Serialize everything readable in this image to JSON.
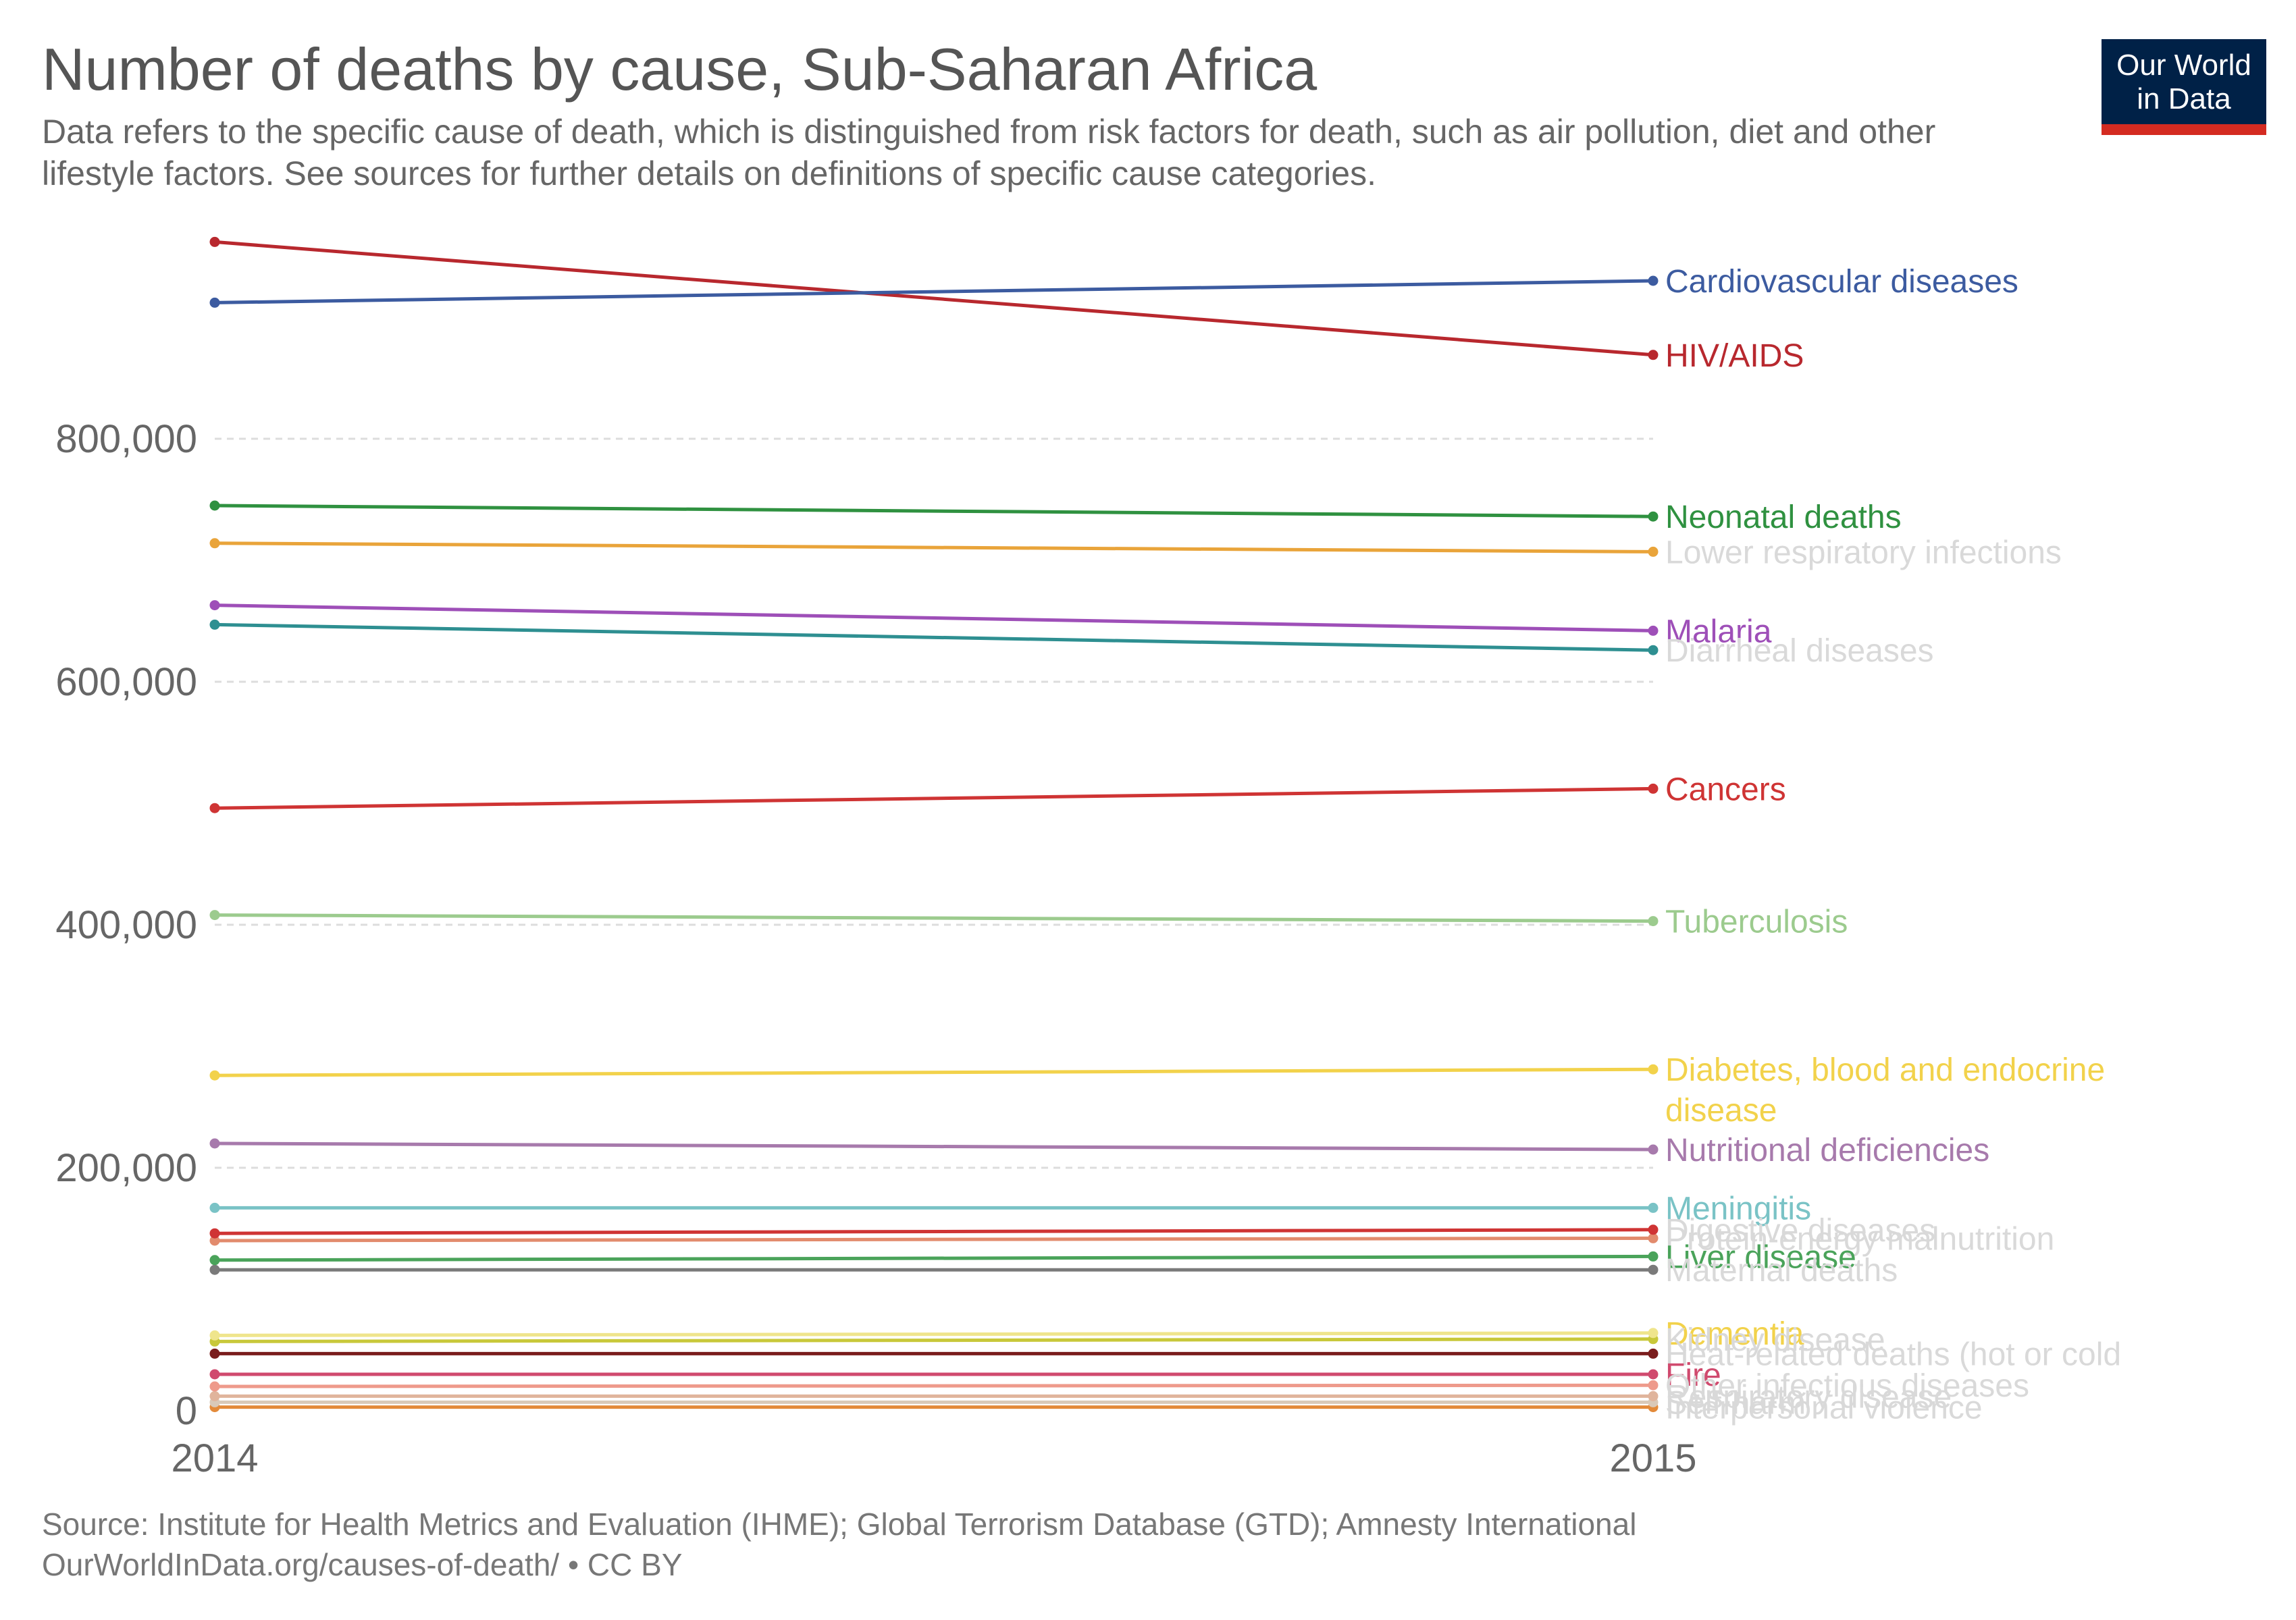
{
  "header": {
    "title": "Number of deaths by cause, Sub-Saharan Africa",
    "subtitle": "Data refers to the specific cause of death, which is distinguished from risk factors for death, such as air pollution, diet and other lifestyle factors. See sources for further details on definitions of specific cause categories.",
    "logo_line1": "Our World",
    "logo_line2": "in Data"
  },
  "footer": {
    "source": "Source: Institute for Health Metrics and Evaluation (IHME); Global Terrorism Database (GTD); Amnesty International",
    "url": "OurWorldInData.org/causes-of-death/ • CC BY"
  },
  "chart_data": {
    "type": "line",
    "x": [
      2014,
      2015
    ],
    "x_tick_labels": [
      "2014",
      "2015"
    ],
    "ylim": [
      0,
      1000000
    ],
    "y_ticks": [
      0,
      200000,
      400000,
      600000,
      800000
    ],
    "y_tick_labels": [
      "0",
      "200,000",
      "400,000",
      "600,000",
      "800,000"
    ],
    "grid": "horizontal dashed",
    "legend": "inline labels at line ends",
    "series": [
      {
        "name": "Cardiovascular diseases",
        "values": [
          912000,
          930000
        ],
        "color": "#3c5ba0",
        "label_color": "#3c5ba0",
        "label_lines": [
          "Cardiovascular diseases"
        ]
      },
      {
        "name": "HIV/AIDS",
        "values": [
          962000,
          869000
        ],
        "color": "#b8282e",
        "label_color": "#b8282e",
        "label_lines": [
          "HIV/AIDS"
        ]
      },
      {
        "name": "Neonatal deaths",
        "values": [
          745000,
          736000
        ],
        "color": "#2f9140",
        "label_color": "#2f9140",
        "label_lines": [
          "Neonatal deaths"
        ]
      },
      {
        "name": "Lower respiratory infections",
        "values": [
          714000,
          707000
        ],
        "color": "#e9a43a",
        "label_color": "#d9d9d9",
        "label_lines": [
          "Lower respiratory infections"
        ]
      },
      {
        "name": "Malaria",
        "values": [
          663000,
          642000
        ],
        "color": "#9e4fb8",
        "label_color": "#9e4fb8",
        "label_lines": [
          "Malaria"
        ]
      },
      {
        "name": "Diarrheal diseases",
        "values": [
          647000,
          626000
        ],
        "color": "#2e8f91",
        "label_color": "#d9d9d9",
        "label_lines": [
          "Diarrheal diseases"
        ]
      },
      {
        "name": "Cancers",
        "values": [
          496000,
          512000
        ],
        "color": "#cf3434",
        "label_color": "#cf3434",
        "label_lines": [
          "Cancers"
        ]
      },
      {
        "name": "Tuberculosis",
        "values": [
          408000,
          403000
        ],
        "color": "#9ccb8e",
        "label_color": "#9ccb8e",
        "label_lines": [
          "Tuberculosis"
        ]
      },
      {
        "name": "Diabetes, blood and endocrine disease",
        "values": [
          276000,
          281000
        ],
        "color": "#f2d24b",
        "label_color": "#f2d24b",
        "label_lines": [
          "Diabetes, blood and endocrine",
          "disease"
        ]
      },
      {
        "name": "Nutritional deficiencies",
        "values": [
          220000,
          215000
        ],
        "color": "#a77aac",
        "label_color": "#a77aac",
        "label_lines": [
          "Nutritional deficiencies"
        ]
      },
      {
        "name": "Meningitis",
        "values": [
          167000,
          167000
        ],
        "color": "#7ac3c6",
        "label_color": "#7ac3c6",
        "label_lines": [
          "Meningitis"
        ]
      },
      {
        "name": "Digestive diseases",
        "values": [
          146000,
          149000
        ],
        "color": "#cf3434",
        "label_color": "#d9d9d9",
        "label_lines": [
          "Digestive diseases"
        ]
      },
      {
        "name": "Protein-energy malnutrition",
        "values": [
          140000,
          142000
        ],
        "color": "#e28b6d",
        "label_color": "#d9d9d9",
        "label_lines": [
          "Protein-energy malnutrition"
        ]
      },
      {
        "name": "Liver disease",
        "values": [
          124000,
          127000
        ],
        "color": "#4aa35a",
        "label_color": "#4aa35a",
        "label_lines": [
          "Liver disease"
        ]
      },
      {
        "name": "Maternal deaths",
        "values": [
          116000,
          116000
        ],
        "color": "#7a7a7a",
        "label_color": "#d9d9d9",
        "label_lines": [
          "Maternal deaths"
        ]
      },
      {
        "name": "Dementia",
        "values": [
          62000,
          64000
        ],
        "color": "#efe58c",
        "label_color": "#f2d24b",
        "label_lines": [
          "Dementia"
        ]
      },
      {
        "name": "Kidney disease",
        "values": [
          57000,
          59000
        ],
        "color": "#c8c83a",
        "label_color": "#d9d9d9",
        "label_lines": [
          "Kidney disease"
        ]
      },
      {
        "name": "Heat-related deaths (hot or cold exposure)",
        "values": [
          47000,
          47000
        ],
        "color": "#7a1d1d",
        "label_color": "#d9d9d9",
        "label_lines": [
          "Heat-related deaths (hot or cold"
        ]
      },
      {
        "name": "Fire",
        "values": [
          30000,
          30000
        ],
        "color": "#d04a6e",
        "label_color": "#d04a6e",
        "label_lines": [
          "Fire"
        ]
      },
      {
        "name": "Other infectious diseases",
        "values": [
          20000,
          21000
        ],
        "color": "#ee9a8b",
        "label_color": "#d9d9d9",
        "label_lines": [
          "Other infectious diseases"
        ]
      },
      {
        "name": "Respiratory disease",
        "values": [
          12000,
          12000
        ],
        "color": "#e0b49c",
        "label_color": "#d9d9d9",
        "label_lines": [
          "Respiratory disease"
        ]
      },
      {
        "name": "Self-harm",
        "values": [
          7000,
          7000
        ],
        "color": "#d9c9b8",
        "label_color": "#d9d9d9",
        "label_lines": [
          "Self-harm"
        ]
      },
      {
        "name": "Interpersonal violence",
        "values": [
          3000,
          3000
        ],
        "color": "#e38a3a",
        "label_color": "#d9d9d9",
        "label_lines": [
          "Interpersonal violence"
        ]
      }
    ]
  }
}
